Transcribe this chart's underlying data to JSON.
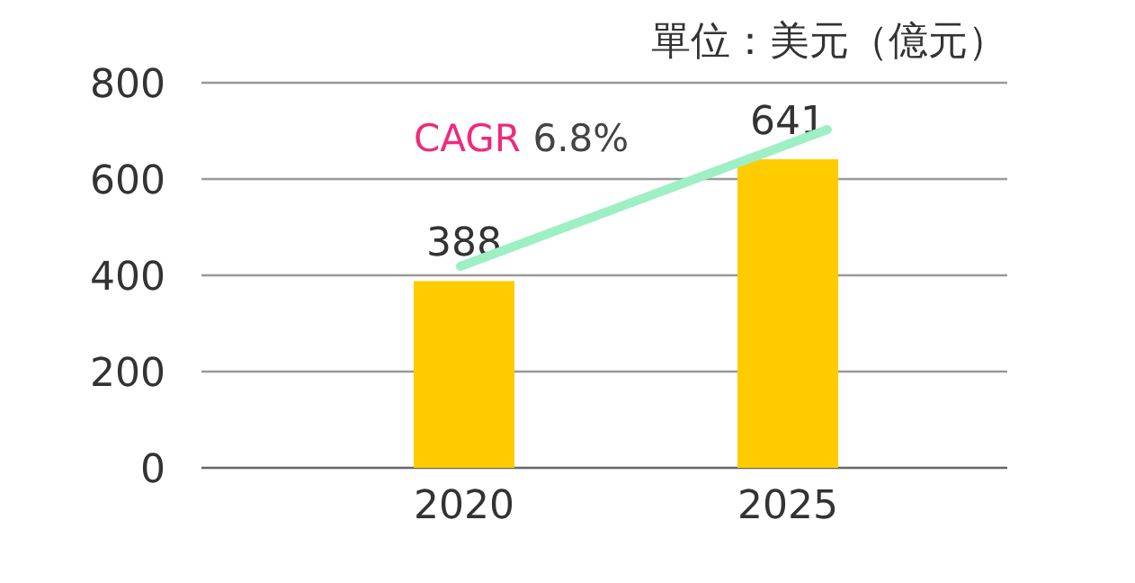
{
  "chart_data": {
    "type": "bar",
    "subtitle": "單位：美元（億元）",
    "categories": [
      "2020",
      "2025"
    ],
    "values": [
      388,
      641
    ],
    "color": "#ffcc00",
    "data_labels": true,
    "ylim": [
      0,
      800
    ],
    "yticks": [
      0,
      200,
      400,
      600,
      800
    ],
    "grid": "y",
    "annotations": [
      "CAGR 6.8%"
    ]
  }
}
